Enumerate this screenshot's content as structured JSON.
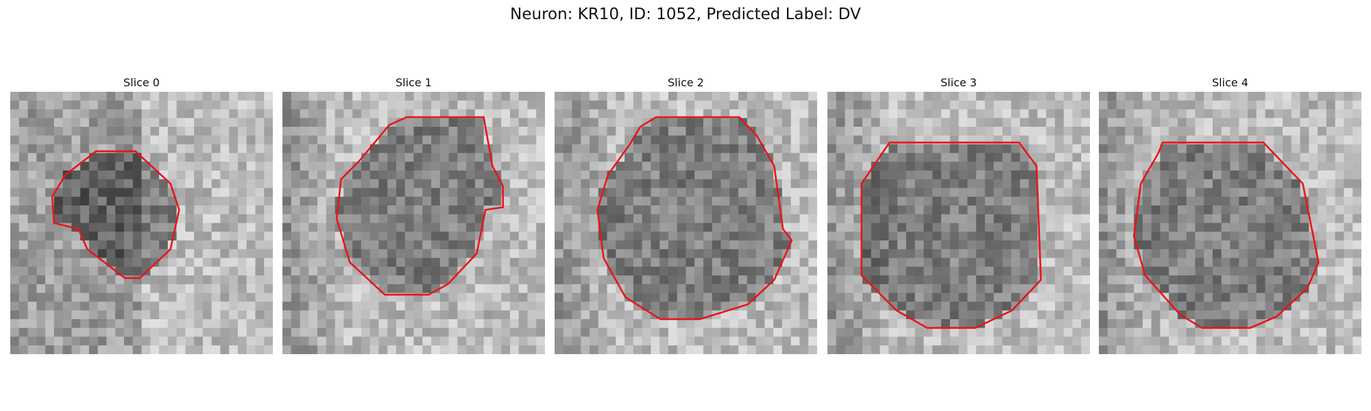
{
  "title": "Neuron: KR10, ID: 1052, Predicted Label: DV",
  "panels": [
    {
      "title": "Slice 0"
    },
    {
      "title": "Slice 1"
    },
    {
      "title": "Slice 2"
    },
    {
      "title": "Slice 3"
    },
    {
      "title": "Slice 4"
    }
  ]
}
